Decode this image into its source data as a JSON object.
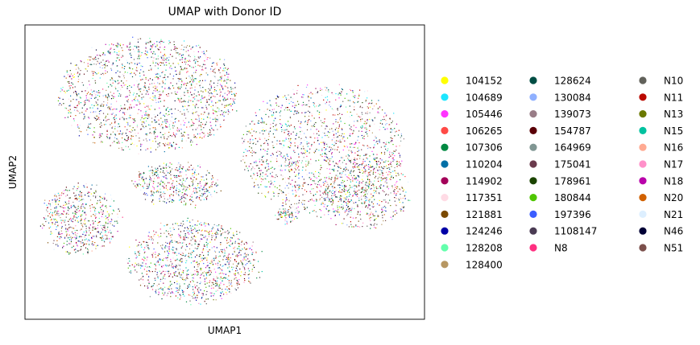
{
  "chart_data": {
    "type": "scatter",
    "title": "UMAP with Donor ID",
    "xlabel": "UMAP1",
    "ylabel": "UMAP2",
    "xticks": [],
    "yticks": [],
    "grid": false,
    "legend_position": "right-outside",
    "legend_columns": 3,
    "series": [
      {
        "name": "104152",
        "color": "#ffff00"
      },
      {
        "name": "104689",
        "color": "#1ce6ff"
      },
      {
        "name": "105446",
        "color": "#ff34ff"
      },
      {
        "name": "106265",
        "color": "#ff4a46"
      },
      {
        "name": "107306",
        "color": "#008941"
      },
      {
        "name": "110204",
        "color": "#006fa6"
      },
      {
        "name": "114902",
        "color": "#a30059"
      },
      {
        "name": "117351",
        "color": "#ffdbe5"
      },
      {
        "name": "121881",
        "color": "#7a4900"
      },
      {
        "name": "124246",
        "color": "#0000a6"
      },
      {
        "name": "128208",
        "color": "#63ffac"
      },
      {
        "name": "128400",
        "color": "#b79762"
      },
      {
        "name": "128624",
        "color": "#004d43"
      },
      {
        "name": "130084",
        "color": "#8fb0ff"
      },
      {
        "name": "139073",
        "color": "#997d87"
      },
      {
        "name": "154787",
        "color": "#5a0007"
      },
      {
        "name": "164969",
        "color": "#809693"
      },
      {
        "name": "175041",
        "color": "#6a3a4c"
      },
      {
        "name": "178961",
        "color": "#1b4400"
      },
      {
        "name": "180844",
        "color": "#4fc601"
      },
      {
        "name": "197396",
        "color": "#3b5dff"
      },
      {
        "name": "1108147",
        "color": "#4a3b53"
      },
      {
        "name": "N8",
        "color": "#ff2f80"
      },
      {
        "name": "N10",
        "color": "#61615a"
      },
      {
        "name": "N11",
        "color": "#ba0900"
      },
      {
        "name": "N13",
        "color": "#6b7900"
      },
      {
        "name": "N15",
        "color": "#00c2a0"
      },
      {
        "name": "N16",
        "color": "#ffaa92"
      },
      {
        "name": "N17",
        "color": "#ff90c9"
      },
      {
        "name": "N18",
        "color": "#b903aa"
      },
      {
        "name": "N20",
        "color": "#d16100"
      },
      {
        "name": "N21",
        "color": "#ddefff"
      },
      {
        "name": "N46",
        "color": "#000035"
      },
      {
        "name": "N51",
        "color": "#7b4f4b"
      }
    ]
  }
}
